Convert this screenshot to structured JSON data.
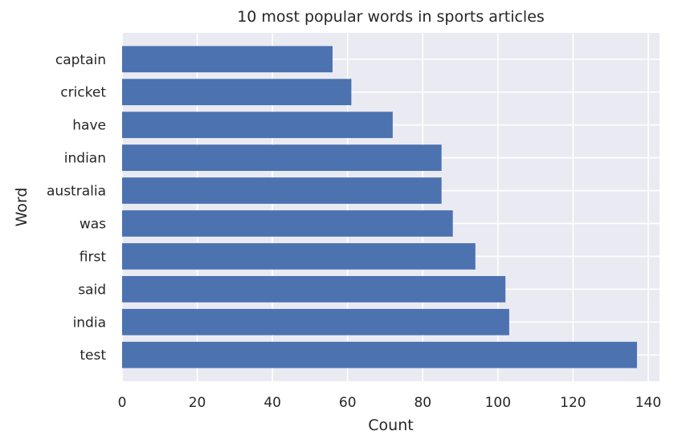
{
  "chart_data": {
    "type": "bar",
    "orientation": "horizontal",
    "title": "10 most popular words in sports articles",
    "xlabel": "Count",
    "ylabel": "Word",
    "categories": [
      "test",
      "india",
      "said",
      "first",
      "was",
      "australia",
      "indian",
      "have",
      "cricket",
      "captain"
    ],
    "values": [
      137,
      103,
      102,
      94,
      88,
      85,
      85,
      72,
      61,
      56
    ],
    "xlim": [
      0,
      143
    ],
    "xticks": [
      0,
      20,
      40,
      60,
      80,
      100,
      120,
      140
    ],
    "grid": true,
    "legend": "none",
    "bar_color": "#4c72b0",
    "background_color": "#eaeaf2",
    "grid_color": "#ffffff"
  }
}
